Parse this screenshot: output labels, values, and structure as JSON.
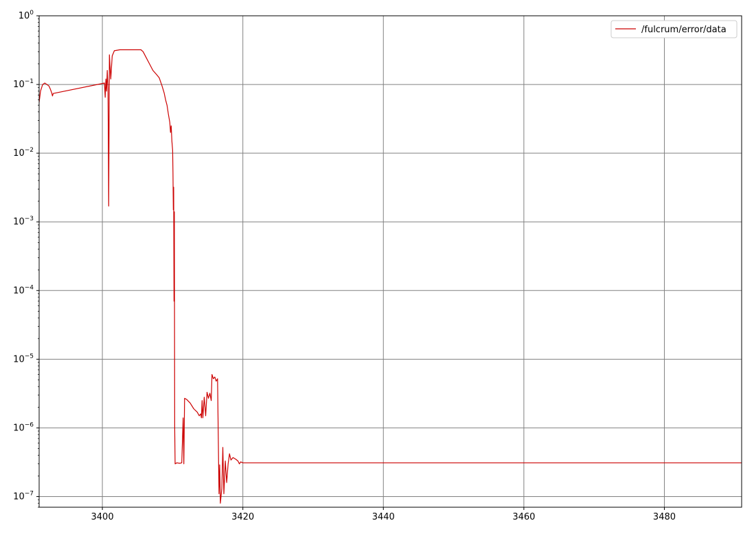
{
  "chart_data": {
    "type": "line",
    "title": "",
    "xlabel": "",
    "ylabel": "",
    "yscale": "log",
    "xlim": [
      3391,
      3491
    ],
    "ylim": [
      7e-08,
      1
    ],
    "grid": true,
    "legend": {
      "placement": "top-right",
      "entries": [
        "/fulcrum/error/data"
      ]
    },
    "x_ticks": [
      {
        "value": 3400,
        "label": "3400"
      },
      {
        "value": 3420,
        "label": "3420"
      },
      {
        "value": 3440,
        "label": "3440"
      },
      {
        "value": 3460,
        "label": "3460"
      },
      {
        "value": 3480,
        "label": "3480"
      }
    ],
    "y_ticks": [
      {
        "value": 1e-07,
        "base": "10",
        "exp": "−7"
      },
      {
        "value": 1e-06,
        "base": "10",
        "exp": "−6"
      },
      {
        "value": 1e-05,
        "base": "10",
        "exp": "−5"
      },
      {
        "value": 0.0001,
        "base": "10",
        "exp": "−4"
      },
      {
        "value": 0.001,
        "base": "10",
        "exp": "−3"
      },
      {
        "value": 0.01,
        "base": "10",
        "exp": "−2"
      },
      {
        "value": 0.1,
        "base": "10",
        "exp": "−1"
      },
      {
        "value": 1,
        "base": "10",
        "exp": "0"
      }
    ],
    "series": [
      {
        "name": "/fulcrum/error/data",
        "color": "#cc0000",
        "points": [
          [
            3391.0,
            0.055
          ],
          [
            3391.2,
            0.08
          ],
          [
            3391.5,
            0.1
          ],
          [
            3391.8,
            0.105
          ],
          [
            3392.1,
            0.1
          ],
          [
            3392.4,
            0.095
          ],
          [
            3392.6,
            0.085
          ],
          [
            3392.8,
            0.075
          ],
          [
            3392.9,
            0.068
          ],
          [
            3393.0,
            0.074
          ],
          [
            3400.3,
            0.105
          ],
          [
            3400.4,
            0.065
          ],
          [
            3400.5,
            0.12
          ],
          [
            3400.6,
            0.08
          ],
          [
            3400.7,
            0.16
          ],
          [
            3400.8,
            0.09
          ],
          [
            3400.9,
            0.0017
          ],
          [
            3401.0,
            0.27
          ],
          [
            3401.2,
            0.12
          ],
          [
            3401.4,
            0.26
          ],
          [
            3401.7,
            0.31
          ],
          [
            3402.5,
            0.32
          ],
          [
            3403.5,
            0.32
          ],
          [
            3404.5,
            0.32
          ],
          [
            3405.5,
            0.32
          ],
          [
            3405.8,
            0.3
          ],
          [
            3406.2,
            0.25
          ],
          [
            3406.7,
            0.2
          ],
          [
            3407.2,
            0.16
          ],
          [
            3407.7,
            0.14
          ],
          [
            3408.1,
            0.125
          ],
          [
            3408.5,
            0.095
          ],
          [
            3408.8,
            0.075
          ],
          [
            3409.0,
            0.06
          ],
          [
            3409.2,
            0.05
          ],
          [
            3409.4,
            0.037
          ],
          [
            3409.6,
            0.028
          ],
          [
            3409.7,
            0.02
          ],
          [
            3409.8,
            0.025
          ],
          [
            3409.9,
            0.015
          ],
          [
            3410.0,
            0.011
          ],
          [
            3410.05,
            0.005
          ],
          [
            3410.1,
            0.0015
          ],
          [
            3410.15,
            0.0032
          ],
          [
            3410.2,
            7e-05
          ],
          [
            3410.25,
            0.0014
          ],
          [
            3410.3,
            1e-06
          ],
          [
            3410.35,
            3e-07
          ],
          [
            3410.6,
            3.1e-07
          ],
          [
            3411.0,
            3.05e-07
          ],
          [
            3411.3,
            3.1e-07
          ],
          [
            3411.5,
            1.4e-06
          ],
          [
            3411.6,
            3e-07
          ],
          [
            3411.7,
            2.7e-06
          ],
          [
            3412.0,
            2.6e-06
          ],
          [
            3412.5,
            2.3e-06
          ],
          [
            3413.0,
            1.9e-06
          ],
          [
            3413.5,
            1.7e-06
          ],
          [
            3413.8,
            1.5e-06
          ],
          [
            3414.0,
            1.6e-06
          ],
          [
            3414.1,
            1.4e-06
          ],
          [
            3414.2,
            2.5e-06
          ],
          [
            3414.3,
            1.4e-06
          ],
          [
            3414.5,
            2.8e-06
          ],
          [
            3414.7,
            1.5e-06
          ],
          [
            3414.9,
            3.3e-06
          ],
          [
            3415.1,
            2.7e-06
          ],
          [
            3415.3,
            3.2e-06
          ],
          [
            3415.5,
            2.5e-06
          ],
          [
            3415.6,
            6e-06
          ],
          [
            3415.8,
            5.2e-06
          ],
          [
            3416.0,
            5.5e-06
          ],
          [
            3416.2,
            4.8e-06
          ],
          [
            3416.4,
            5.2e-06
          ],
          [
            3416.6,
            1.1e-07
          ],
          [
            3416.7,
            2.9e-07
          ],
          [
            3416.8,
            8e-08
          ],
          [
            3417.0,
            1.3e-07
          ],
          [
            3417.15,
            5.2e-07
          ],
          [
            3417.3,
            1.1e-07
          ],
          [
            3417.5,
            3.3e-07
          ],
          [
            3417.7,
            1.6e-07
          ],
          [
            3417.9,
            3e-07
          ],
          [
            3418.1,
            4.2e-07
          ],
          [
            3418.3,
            3.4e-07
          ],
          [
            3418.6,
            3.7e-07
          ],
          [
            3419.0,
            3.5e-07
          ],
          [
            3419.3,
            3.3e-07
          ],
          [
            3419.5,
            3e-07
          ],
          [
            3419.7,
            3.2e-07
          ],
          [
            3420.0,
            3.1e-07
          ],
          [
            3491.0,
            3.1e-07
          ]
        ]
      }
    ]
  }
}
